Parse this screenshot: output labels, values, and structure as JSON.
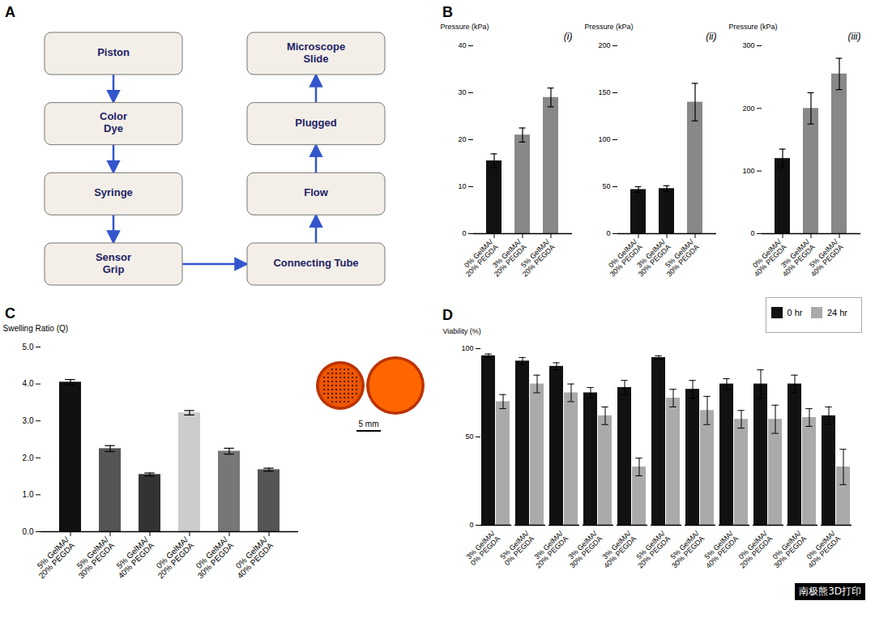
{
  "chart_data": [
    {
      "type": "diagram",
      "annotations": [
        "A",
        "Piston",
        "Color\nDye",
        "Syringe",
        "Sensor\nGrip",
        "Connecting Tube",
        "Flow",
        "Plugged",
        "Microscope\nSlide"
      ]
    },
    {
      "type": "bar",
      "title": "(i)",
      "annotations": [
        "B"
      ],
      "categories": [
        "0% GelMA/\n20% PEGDA",
        "3% GelMA/\n20% PEGDA",
        "5% GelMA/\n20% PEGDA"
      ],
      "values": [
        15.5,
        21.0,
        29.0
      ],
      "errors": [
        1.5,
        1.5,
        2.0
      ],
      "colors": [
        "#111111",
        "#888888",
        "#888888"
      ],
      "ylim": [
        0,
        40
      ],
      "yticks": [
        0,
        10,
        20,
        30,
        40
      ],
      "ylabel": "Pressure (kPa)"
    },
    {
      "type": "bar",
      "title": "(ii)",
      "categories": [
        "0% GelMA/\n30% PEGDA",
        "3% GelMA/\n30% PEGDA",
        "5% GelMA/\n30% PEGDA"
      ],
      "values": [
        47.0,
        48.0,
        140.0
      ],
      "errors": [
        3.0,
        3.0,
        20.0
      ],
      "colors": [
        "#111111",
        "#111111",
        "#888888"
      ],
      "ylim": [
        0,
        200
      ],
      "yticks": [
        0,
        50,
        100,
        150,
        200
      ],
      "ylabel": "Pressure (kPa)"
    },
    {
      "type": "bar",
      "title": "(iii)",
      "categories": [
        "0% GelMA/\n40% PEGDA",
        "3% GelMA/\n40% PEGDA",
        "5% GelMA/\n40% PEGDA"
      ],
      "values": [
        120.0,
        200.0,
        255.0
      ],
      "errors": [
        15.0,
        25.0,
        25.0
      ],
      "colors": [
        "#111111",
        "#888888",
        "#888888"
      ],
      "ylim": [
        0,
        300
      ],
      "yticks": [
        0,
        100,
        200,
        300
      ],
      "ylabel": "Pressure (kPa)"
    },
    {
      "type": "bar",
      "annotations": [
        "C",
        "5 mm"
      ],
      "categories": [
        "5% GelMA/\n20% PEGDA",
        "5% GelMA/\n30% PEGDA",
        "5% GelMA/\n40% PEGDA",
        "0% GelMA/\n20% PEGDA",
        "0% GelMA/\n30% PEGDA",
        "0% GelMA/\n40% PEGDA"
      ],
      "values": [
        4.05,
        2.25,
        1.55,
        3.22,
        2.18,
        1.68
      ],
      "errors": [
        0.07,
        0.08,
        0.04,
        0.06,
        0.08,
        0.04
      ],
      "colors": [
        "#111111",
        "#555555",
        "#333333",
        "#cccccc",
        "#777777",
        "#555555"
      ],
      "ylim": [
        0,
        5
      ],
      "yticks": [
        0,
        1,
        2,
        3,
        4,
        5
      ],
      "ylabel": "Swelling Ratio (Q)"
    },
    {
      "type": "bar",
      "annotations": [
        "D",
        "南极熊3D打印"
      ],
      "categories": [
        "3% GelMA/\n0% PEGDA",
        "5% GelMA/\n0% PEGDA",
        "3% GelMA/\n20% PEGDA",
        "3% GelMA/\n30% PEGDA",
        "3% GelMA/\n40% PEGDA",
        "5% GelMA/\n20% PEGDA",
        "5% GelMA/\n30% PEGDA",
        "5% GelMA/\n40% PEGDA",
        "0% GelMA/\n20% PEGDA",
        "0% GelMA/\n30% PEGDA",
        "0% GelMA/\n40% PEGDA"
      ],
      "series": [
        {
          "name": "0 hr",
          "color": "#111111",
          "values": [
            96,
            93,
            90,
            75,
            78,
            95,
            77,
            80,
            80,
            80,
            62
          ],
          "errors": [
            1,
            2,
            2,
            3,
            4,
            1,
            5,
            3,
            8,
            5,
            5
          ]
        },
        {
          "name": "24 hr",
          "color": "#aaaaaa",
          "values": [
            70,
            80,
            75,
            62,
            33,
            72,
            65,
            60,
            60,
            61,
            33
          ],
          "errors": [
            4,
            5,
            5,
            5,
            5,
            5,
            8,
            5,
            8,
            5,
            10
          ]
        }
      ],
      "ylim": [
        0,
        100
      ],
      "yticks": [
        0,
        50,
        100
      ],
      "ylabel": "Viability (%)",
      "legend": "upper right"
    }
  ]
}
